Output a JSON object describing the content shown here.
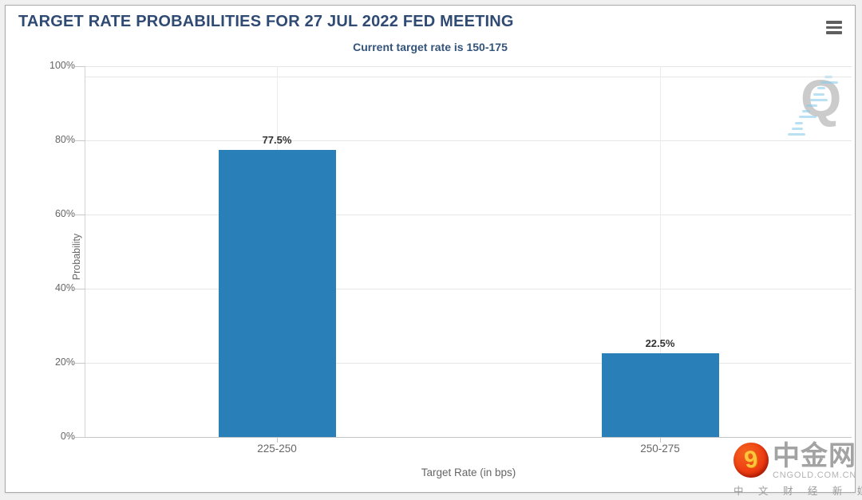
{
  "header": {
    "title": "TARGET RATE PROBABILITIES FOR 27 JUL 2022 FED MEETING",
    "menu_icon": "hamburger-icon"
  },
  "chart_data": {
    "type": "bar",
    "title": "TARGET RATE PROBABILITIES FOR 27 JUL 2022 FED MEETING",
    "subtitle": "Current target rate is 150-175",
    "categories": [
      "225-250",
      "250-275"
    ],
    "values": [
      77.5,
      22.5
    ],
    "data_labels": [
      "77.5%",
      "22.5%"
    ],
    "xlabel": "Target Rate (in bps)",
    "ylabel": "Probability",
    "ylim": [
      0,
      100
    ],
    "yticks": [
      0,
      20,
      40,
      60,
      80,
      100
    ],
    "ytick_labels": [
      "0%",
      "20%",
      "40%",
      "60%",
      "80%",
      "100%"
    ],
    "grid": true,
    "legend_position": "none",
    "bar_color": "#2980b9"
  },
  "colors": {
    "bar": "#2980b9",
    "title": "#2f4a73",
    "subtitle": "#33537a",
    "axis_text": "#666666",
    "gridline": "#e6e6e6"
  },
  "watermark": {
    "letter": "Q"
  },
  "logo": {
    "swirl": "9",
    "name": "中金网",
    "domain": "CNGOLD.COM.CN",
    "tagline": "中 文 财 经 新 媒 体"
  }
}
